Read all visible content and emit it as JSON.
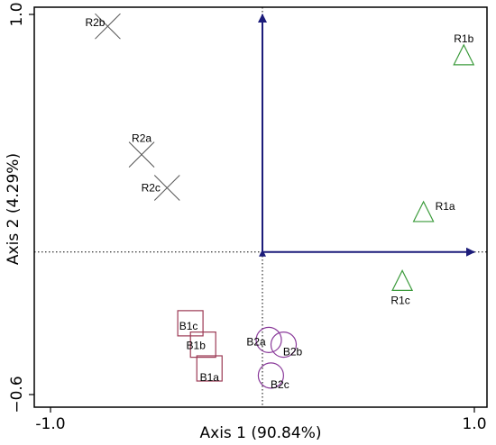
{
  "chart_data": {
    "type": "scatter",
    "xlabel": "Axis 1 (90.84%)",
    "ylabel": "Axis 2 (4.29%)",
    "xlim": [
      -1.0,
      1.0
    ],
    "ylim": [
      -0.6,
      1.0
    ],
    "x_ticks": [
      {
        "value": -1.0,
        "label": "-1.0"
      },
      {
        "value": 1.0,
        "label": "1.0"
      }
    ],
    "y_ticks": [
      {
        "value": 1.0,
        "label": "1.0"
      },
      {
        "value": -0.6,
        "label": "−0.6"
      }
    ],
    "grid": false,
    "reference_lines": {
      "x": 0,
      "y": 0,
      "style": "dotted"
    },
    "vectors": [
      {
        "dx": 1.0,
        "dy": 0,
        "color": "#1c1c7a"
      },
      {
        "dx": 0,
        "dy": 1.0,
        "color": "#1c1c7a"
      }
    ],
    "series": [
      {
        "marker": "triangle",
        "color": "#3a9a3a",
        "points": [
          {
            "label": "R1a",
            "x": 0.76,
            "y": 0.17
          },
          {
            "label": "R1b",
            "x": 0.95,
            "y": 0.83
          },
          {
            "label": "R1c",
            "x": 0.66,
            "y": -0.12
          }
        ]
      },
      {
        "marker": "x",
        "color": "#555555",
        "points": [
          {
            "label": "R2a",
            "x": -0.57,
            "y": 0.41
          },
          {
            "label": "R2b",
            "x": -0.73,
            "y": 0.95
          },
          {
            "label": "R2c",
            "x": -0.45,
            "y": 0.27
          }
        ]
      },
      {
        "marker": "square",
        "color": "#9c3a55",
        "points": [
          {
            "label": "B1a",
            "x": -0.25,
            "y": -0.49
          },
          {
            "label": "B1b",
            "x": -0.28,
            "y": -0.39
          },
          {
            "label": "B1c",
            "x": -0.34,
            "y": -0.3
          }
        ]
      },
      {
        "marker": "circle",
        "color": "#8a3a9a",
        "points": [
          {
            "label": "B2a",
            "x": 0.03,
            "y": -0.37
          },
          {
            "label": "B2b",
            "x": 0.1,
            "y": -0.39
          },
          {
            "label": "B2c",
            "x": 0.04,
            "y": -0.52
          }
        ]
      }
    ]
  },
  "colors": {
    "axis": "#000000",
    "vector": "#1c1c7a",
    "triangle": "#3a9a3a",
    "x_marker": "#555555",
    "square": "#9c3a55",
    "circle": "#8a3a9a"
  }
}
